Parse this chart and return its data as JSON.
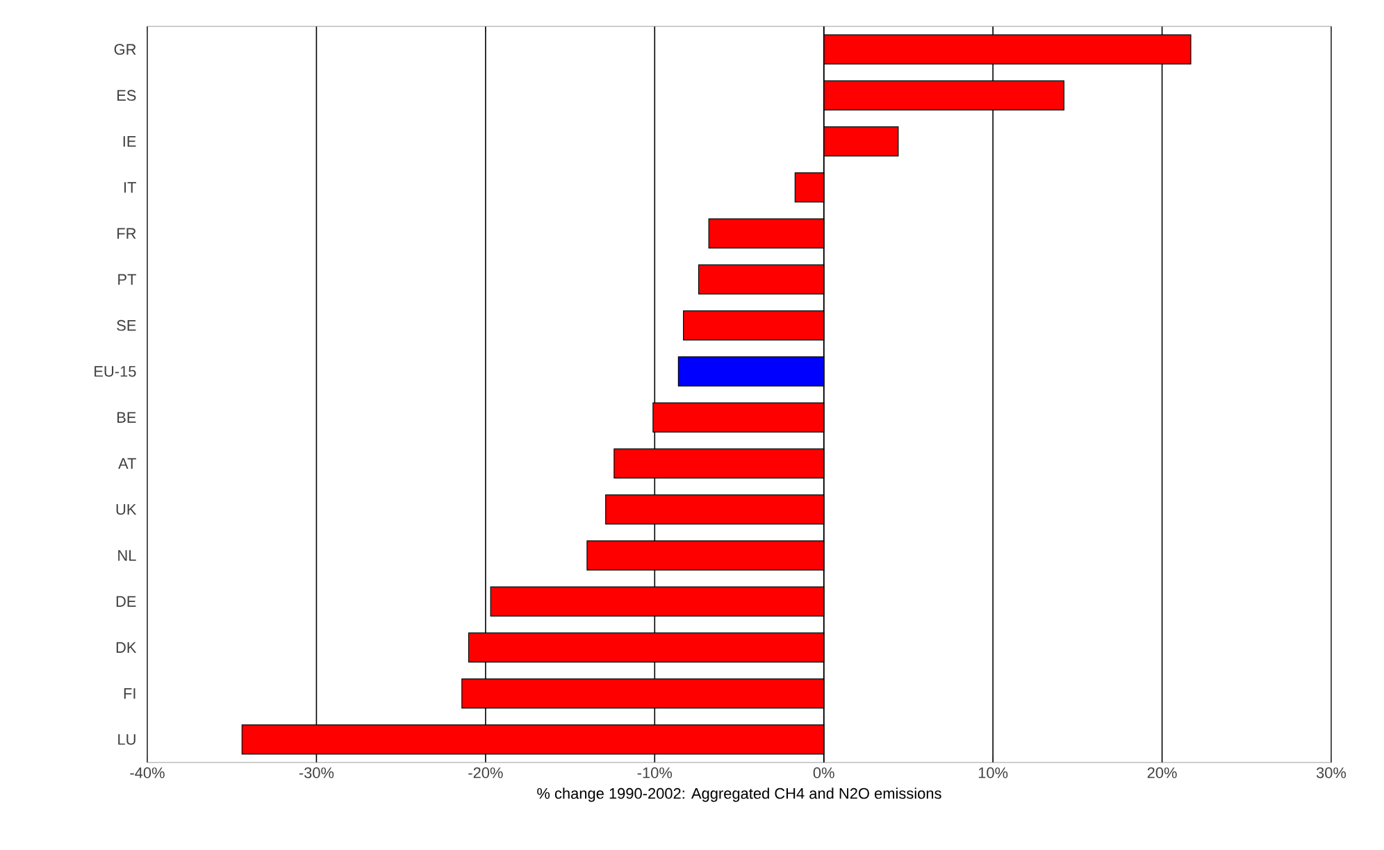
{
  "chart_data": {
    "type": "bar",
    "orientation": "horizontal",
    "xlabel": "% change 1990-2002: Aggregated CH4 and N2O emissions",
    "categories": [
      "GR",
      "ES",
      "IE",
      "IT",
      "FR",
      "PT",
      "SE",
      "EU-15",
      "BE",
      "AT",
      "UK",
      "NL",
      "DE",
      "DK",
      "FI",
      "LU"
    ],
    "values": [
      21.7,
      14.2,
      4.4,
      -1.7,
      -6.8,
      -7.4,
      -8.3,
      -8.6,
      -10.1,
      -12.4,
      -12.9,
      -14.0,
      -19.7,
      -21.0,
      -21.4,
      -34.4
    ],
    "colors": [
      "#ff0000",
      "#ff0000",
      "#ff0000",
      "#ff0000",
      "#ff0000",
      "#ff0000",
      "#ff0000",
      "#0000ff",
      "#ff0000",
      "#ff0000",
      "#ff0000",
      "#ff0000",
      "#ff0000",
      "#ff0000",
      "#ff0000",
      "#ff0000"
    ],
    "xlim": [
      -40,
      30
    ],
    "xticks": [
      {
        "value": -40,
        "label": "-40%"
      },
      {
        "value": -30,
        "label": "-30%"
      },
      {
        "value": -20,
        "label": "-20%"
      },
      {
        "value": -10,
        "label": "-10%"
      },
      {
        "value": 0,
        "label": "0%"
      },
      {
        "value": 10,
        "label": "10%"
      },
      {
        "value": 20,
        "label": "20%"
      },
      {
        "value": 30,
        "label": "30%"
      }
    ],
    "grid": "x"
  }
}
